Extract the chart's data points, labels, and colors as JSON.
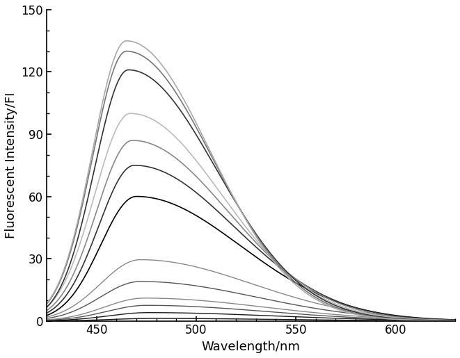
{
  "xlabel": "Wavelength/nm",
  "ylabel": "Fluorescent Intensity/FI",
  "xlim": [
    425,
    630
  ],
  "ylim": [
    0,
    150
  ],
  "xticks": [
    450,
    500,
    550,
    600
  ],
  "yticks": [
    0,
    30,
    60,
    90,
    120,
    150
  ],
  "x_start": 425,
  "x_end": 630,
  "peak_values": [
    1.2,
    4.0,
    7.5,
    11.0,
    19.0,
    29.5,
    60.0,
    75.0,
    87.0,
    100.0,
    121.0,
    130.0,
    135.0
  ],
  "peak_positions": [
    478,
    476,
    475,
    474,
    472,
    472,
    470,
    469,
    468,
    467,
    466,
    465,
    465
  ],
  "left_sigmas": [
    20,
    20,
    20,
    20,
    20,
    20,
    18,
    18,
    18,
    18,
    17,
    17,
    17
  ],
  "right_sigmas": [
    62,
    62,
    60,
    60,
    58,
    56,
    52,
    50,
    48,
    46,
    44,
    43,
    42
  ],
  "colors": [
    "#1a1a1a",
    "#1a1a1a",
    "#555555",
    "#888888",
    "#555555",
    "#888888",
    "#000000",
    "#333333",
    "#888888",
    "#bbbbbb",
    "#333333",
    "#777777",
    "#aaaaaa"
  ],
  "linewidths": [
    1.0,
    1.0,
    1.0,
    1.0,
    1.0,
    1.0,
    1.2,
    1.2,
    1.2,
    1.2,
    1.2,
    1.2,
    1.2
  ],
  "background_color": "#ffffff",
  "figsize": [
    6.61,
    5.15
  ],
  "dpi": 100
}
